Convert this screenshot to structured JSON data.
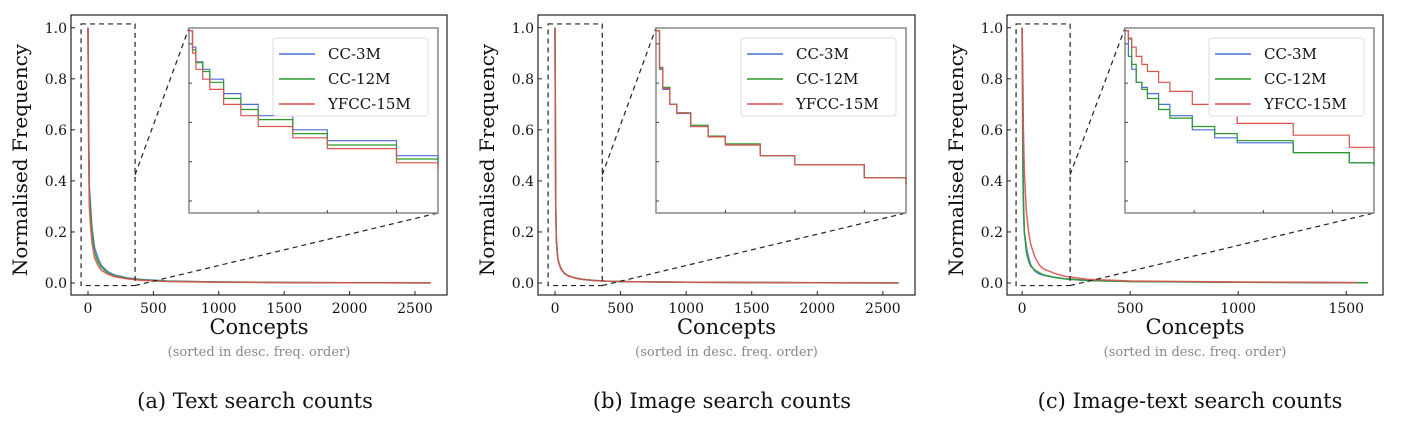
{
  "chart_data": [
    {
      "type": "line",
      "caption": "(a) Text search counts",
      "xlabel": "Concepts",
      "xlabel_sub": "(sorted in desc. freq. order)",
      "ylabel": "Normalised Frequency",
      "xlim": [
        -130,
        2745
      ],
      "ylim": [
        -0.047,
        1.05
      ],
      "xticks": [
        0,
        500,
        1000,
        1500,
        2000,
        2500
      ],
      "yticks": [
        0.0,
        0.2,
        0.4,
        0.6,
        0.8,
        1.0
      ],
      "inset_xlim": [
        -53,
        360
      ],
      "inset_scale": "log",
      "legend": "top-right",
      "series": [
        {
          "name": "CC-3M",
          "color": "#4a6fd8",
          "x": [
            0,
            5,
            10,
            20,
            30,
            50,
            75,
            100,
            150,
            200,
            300,
            400,
            600,
            1000,
            1500,
            2000,
            2620
          ],
          "y": [
            1,
            0.6,
            0.38,
            0.3,
            0.22,
            0.14,
            0.1,
            0.07,
            0.045,
            0.032,
            0.02,
            0.014,
            0.008,
            0.004,
            0.002,
            0.001,
            0.0005
          ]
        },
        {
          "name": "CC-12M",
          "color": "#2a9a2a",
          "x": [
            0,
            5,
            10,
            20,
            30,
            50,
            75,
            100,
            150,
            200,
            300,
            400,
            600,
            1000,
            1500,
            2000,
            2620
          ],
          "y": [
            1,
            0.55,
            0.37,
            0.28,
            0.2,
            0.12,
            0.085,
            0.062,
            0.04,
            0.028,
            0.018,
            0.013,
            0.007,
            0.004,
            0.002,
            0.001,
            0.0005
          ]
        },
        {
          "name": "YFCC-15M",
          "color": "#d9534f",
          "x": [
            0,
            5,
            10,
            20,
            30,
            50,
            75,
            100,
            150,
            200,
            300,
            400,
            600,
            1000,
            1500,
            2000,
            2620
          ],
          "y": [
            1,
            0.5,
            0.3,
            0.22,
            0.16,
            0.1,
            0.07,
            0.05,
            0.035,
            0.025,
            0.016,
            0.011,
            0.006,
            0.003,
            0.0015,
            0.001,
            0.0005
          ]
        }
      ]
    },
    {
      "type": "line",
      "caption": "(b) Image search counts",
      "xlabel": "Concepts",
      "xlabel_sub": "(sorted in desc. freq. order)",
      "ylabel": "Normalised Frequency",
      "xlim": [
        -130,
        2745
      ],
      "ylim": [
        -0.047,
        1.05
      ],
      "xticks": [
        0,
        500,
        1000,
        1500,
        2000,
        2500
      ],
      "yticks": [
        0.0,
        0.2,
        0.4,
        0.6,
        0.8,
        1.0
      ],
      "inset_xlim": [
        -53,
        360
      ],
      "inset_scale": "log",
      "legend": "top-right",
      "series": [
        {
          "name": "CC-3M",
          "color": "#4a6fd8",
          "x": [
            0,
            5,
            10,
            20,
            30,
            50,
            75,
            100,
            150,
            200,
            300,
            400,
            600,
            1000,
            1500,
            2000,
            2620
          ],
          "y": [
            1,
            0.3,
            0.16,
            0.1,
            0.075,
            0.05,
            0.036,
            0.028,
            0.02,
            0.015,
            0.01,
            0.007,
            0.005,
            0.003,
            0.002,
            0.001,
            0.0006
          ]
        },
        {
          "name": "CC-12M",
          "color": "#2a9a2a",
          "x": [
            0,
            5,
            10,
            20,
            30,
            50,
            75,
            100,
            150,
            200,
            300,
            400,
            600,
            1000,
            1500,
            2000,
            2620
          ],
          "y": [
            1,
            0.32,
            0.17,
            0.1,
            0.077,
            0.052,
            0.037,
            0.029,
            0.02,
            0.015,
            0.01,
            0.007,
            0.005,
            0.003,
            0.002,
            0.001,
            0.0006
          ]
        },
        {
          "name": "YFCC-15M",
          "color": "#d9534f",
          "x": [
            0,
            5,
            10,
            20,
            30,
            50,
            75,
            100,
            150,
            200,
            300,
            400,
            600,
            1000,
            1500,
            2000,
            2620
          ],
          "y": [
            1,
            0.31,
            0.165,
            0.1,
            0.076,
            0.05,
            0.036,
            0.028,
            0.02,
            0.015,
            0.01,
            0.007,
            0.005,
            0.003,
            0.002,
            0.001,
            0.0006
          ]
        }
      ]
    },
    {
      "type": "line",
      "caption": "(c) Image-text search counts",
      "xlabel": "Concepts",
      "xlabel_sub": "(sorted in desc. freq. order)",
      "ylabel": "Normalised Frequency",
      "xlim": [
        -70,
        1670
      ],
      "ylim": [
        -0.047,
        1.05
      ],
      "xticks": [
        0,
        500,
        1000,
        1500
      ],
      "yticks": [
        0.0,
        0.2,
        0.4,
        0.6,
        0.8,
        1.0
      ],
      "inset_xlim": [
        -28,
        222
      ],
      "inset_scale": "log",
      "legend": "top-right",
      "series": [
        {
          "name": "CC-3M",
          "color": "#4a6fd8",
          "x": [
            0,
            3,
            6,
            10,
            15,
            20,
            30,
            40,
            60,
            80,
            100,
            150,
            200,
            300,
            500,
            1000,
            1600
          ],
          "y": [
            1,
            0.45,
            0.3,
            0.2,
            0.17,
            0.14,
            0.1,
            0.07,
            0.045,
            0.035,
            0.03,
            0.022,
            0.016,
            0.01,
            0.006,
            0.003,
            0.001
          ]
        },
        {
          "name": "CC-12M",
          "color": "#2a9a2a",
          "x": [
            0,
            3,
            6,
            10,
            15,
            20,
            30,
            40,
            60,
            80,
            100,
            150,
            200,
            300,
            500,
            1000,
            1600
          ],
          "y": [
            1,
            0.78,
            0.35,
            0.2,
            0.16,
            0.12,
            0.085,
            0.065,
            0.05,
            0.04,
            0.032,
            0.022,
            0.016,
            0.01,
            0.006,
            0.003,
            0.001
          ]
        },
        {
          "name": "YFCC-15M",
          "color": "#d9534f",
          "x": [
            0,
            3,
            6,
            10,
            15,
            20,
            30,
            40,
            60,
            80,
            100,
            150,
            200,
            300,
            500,
            1000,
            1550
          ],
          "y": [
            1,
            0.8,
            0.6,
            0.45,
            0.35,
            0.28,
            0.2,
            0.15,
            0.1,
            0.07,
            0.055,
            0.038,
            0.026,
            0.015,
            0.008,
            0.004,
            0.0015
          ]
        }
      ]
    }
  ]
}
